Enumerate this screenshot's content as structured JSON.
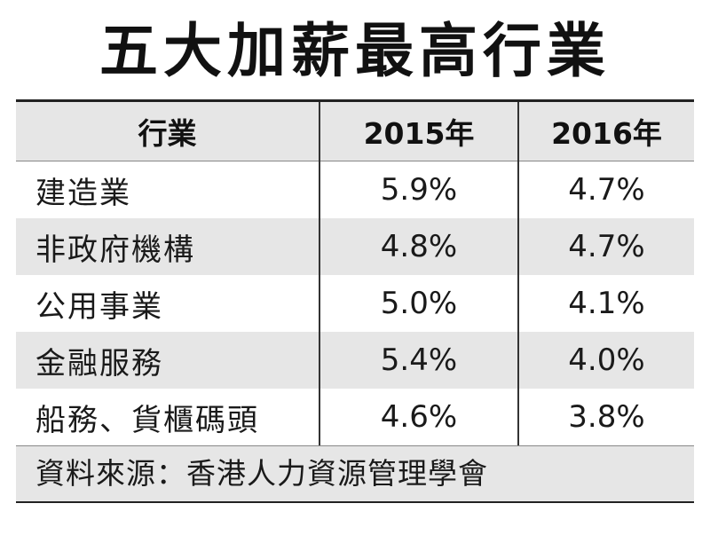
{
  "title": "五大加薪最高行業",
  "table": {
    "headers": [
      "行業",
      "2015年",
      "2016年"
    ],
    "rows": [
      {
        "industry": "建造業",
        "y2015": "5.9%",
        "y2016": "4.7%"
      },
      {
        "industry": "非政府機構",
        "y2015": "4.8%",
        "y2016": "4.7%"
      },
      {
        "industry": "公用事業",
        "y2015": "5.0%",
        "y2016": "4.1%"
      },
      {
        "industry": "金融服務",
        "y2015": "5.4%",
        "y2016": "4.0%"
      },
      {
        "industry": "船務、貨櫃碼頭",
        "y2015": "4.6%",
        "y2016": "3.8%"
      }
    ]
  },
  "source": "資料來源：香港人力資源管理學會",
  "colors": {
    "shade": "#e6e6e6",
    "rule": "#222222"
  }
}
